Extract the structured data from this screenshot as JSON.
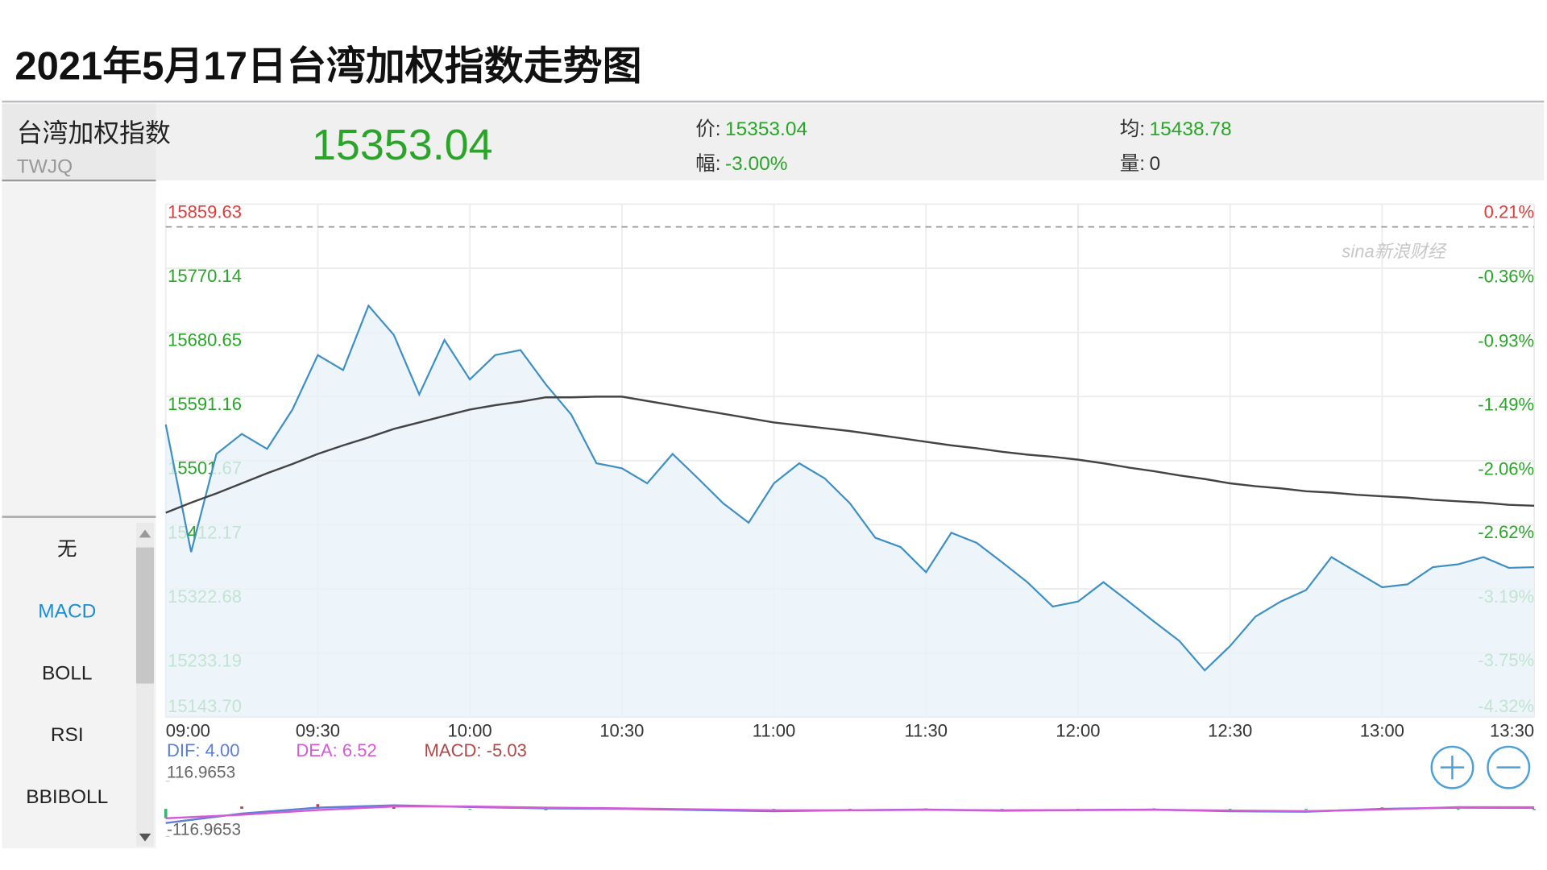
{
  "title": "2021年5月17日台湾加权指数走势图",
  "quote": {
    "name": "台湾加权指数",
    "code": "TWJQ",
    "last": "15353.04",
    "fields": [
      {
        "label": "价:",
        "value": "15353.04"
      },
      {
        "label": "幅:",
        "value": "-3.00%"
      },
      {
        "label": "均:",
        "value": "15438.78"
      },
      {
        "label": "量:",
        "value": "0"
      }
    ]
  },
  "indicators": [
    "无",
    "MACD",
    "BOLL",
    "RSI",
    "BBIBOLL"
  ],
  "watermark": "sina新浪财经",
  "chart_data": [
    {
      "type": "line",
      "up_color": "#e03a3a",
      "down_color": "#2aa52a",
      "baseline": 15827.97,
      "x": [
        "09:00",
        "09:05",
        "09:10",
        "09:15",
        "09:20",
        "09:25",
        "09:30",
        "09:35",
        "09:40",
        "09:45",
        "09:50",
        "09:55",
        "10:00",
        "10:05",
        "10:10",
        "10:15",
        "10:20",
        "10:25",
        "10:30",
        "10:35",
        "10:40",
        "10:45",
        "10:50",
        "10:55",
        "11:00",
        "11:05",
        "11:10",
        "11:15",
        "11:20",
        "11:25",
        "11:30",
        "11:35",
        "11:40",
        "11:45",
        "11:50",
        "11:55",
        "12:00",
        "12:05",
        "12:10",
        "12:15",
        "12:20",
        "12:25",
        "12:30",
        "12:35",
        "12:40",
        "12:45",
        "12:50",
        "12:55",
        "13:00",
        "13:05",
        "13:10",
        "13:15",
        "13:20",
        "13:25",
        "13:30"
      ],
      "series": [
        {
          "color": "#3d8fc4",
          "values": [
            15552,
            15374,
            15511,
            15539,
            15518,
            15573,
            15649,
            15628,
            15718,
            15677,
            15594,
            15670,
            15615,
            15649,
            15656,
            15608,
            15566,
            15498,
            15491,
            15470,
            15511,
            15477,
            15442,
            15415,
            15470,
            15498,
            15477,
            15442,
            15394,
            15381,
            15346,
            15401,
            15387,
            15360,
            15332,
            15298,
            15305,
            15332,
            15305,
            15277,
            15250,
            15209,
            15243,
            15284,
            15305,
            15321,
            15367,
            15346,
            15325,
            15329,
            15353,
            15357,
            15367,
            15352,
            15353.04
          ]
        },
        {
          "color": "#444444",
          "values": [
            15429,
            15443,
            15456,
            15470,
            15484,
            15497,
            15511,
            15523,
            15534,
            15546,
            15555,
            15564,
            15573,
            15579,
            15584,
            15590,
            15590,
            15591,
            15591,
            15585,
            15579,
            15573,
            15567,
            15561,
            15555,
            15551,
            15547,
            15543,
            15538,
            15533,
            15528,
            15523,
            15519,
            15514,
            15510,
            15507,
            15503,
            15498,
            15492,
            15487,
            15481,
            15476,
            15470,
            15466,
            15463,
            15459,
            15457,
            15454,
            15452,
            15450,
            15447,
            15445,
            15443,
            15440,
            15438.78
          ]
        }
      ],
      "xlim": [
        "09:00",
        "13:30"
      ],
      "xticks": [
        "09:00",
        "09:30",
        "10:00",
        "10:30",
        "11:00",
        "11:30",
        "12:00",
        "12:30",
        "13:00",
        "13:30"
      ],
      "ylim": [
        15143.7,
        15859.63
      ],
      "yticks": [
        15859.63,
        15770.14,
        15680.65,
        15591.16,
        15501.67,
        15412.17,
        15322.68,
        15233.19,
        {
          "value": 15143.7,
          "label": "15143.70"
        }
      ],
      "y2lim": [
        -4.32,
        0.21
      ],
      "y2ticks": [
        {
          "value": 0.21,
          "label": "0.21%"
        },
        {
          "value": -0.36,
          "label": "-0.36%"
        },
        {
          "value": -0.93,
          "label": "-0.93%"
        },
        {
          "value": -1.49,
          "label": "-1.49%"
        },
        {
          "value": -2.06,
          "label": "-2.06%"
        },
        {
          "value": -2.62,
          "label": "-2.62%"
        },
        {
          "value": -3.19,
          "label": "-3.19%"
        },
        {
          "value": -3.75,
          "label": "-3.75%"
        },
        {
          "value": -4.32,
          "label": "-4.32%"
        }
      ],
      "grid": true
    },
    {
      "type": "macd",
      "legend": [
        "DIF: 4.00",
        "DEA: 6.52",
        "MACD: -5.03"
      ],
      "x": [
        "09:00",
        "09:15",
        "09:30",
        "09:45",
        "10:00",
        "10:15",
        "10:30",
        "10:45",
        "11:00",
        "11:15",
        "11:30",
        "11:45",
        "12:00",
        "12:15",
        "12:30",
        "12:45",
        "13:00",
        "13:15",
        "13:30"
      ],
      "xlim": [
        "09:00",
        "13:30"
      ],
      "series": [
        {
          "color": "#5b7fd8",
          "values": [
            -60,
            -20,
            5,
            15,
            8,
            2,
            0,
            -5,
            -10,
            -6,
            -3,
            -8,
            -5,
            -3,
            -10,
            -12,
            0,
            5,
            4
          ]
        },
        {
          "color": "#d65ad6",
          "values": [
            -40,
            -25,
            -5,
            10,
            10,
            5,
            2,
            -2,
            -6,
            -6,
            -4,
            -6,
            -5,
            -4,
            -7,
            -10,
            -3,
            7,
            6.52
          ]
        },
        {
          "color": "#b04848",
          "up_color": "#b04848",
          "down_color": "#3cb371",
          "values": [
            -40,
            10,
            20,
            10,
            -4,
            -6,
            -4,
            -6,
            -8,
            0,
            2,
            -4,
            0,
            2,
            -6,
            -4,
            6,
            -4,
            -5.03
          ]
        }
      ],
      "ylim": [
        -116.9653,
        116.9653
      ],
      "yticks": [
        116.9653,
        -116.9653
      ]
    }
  ]
}
